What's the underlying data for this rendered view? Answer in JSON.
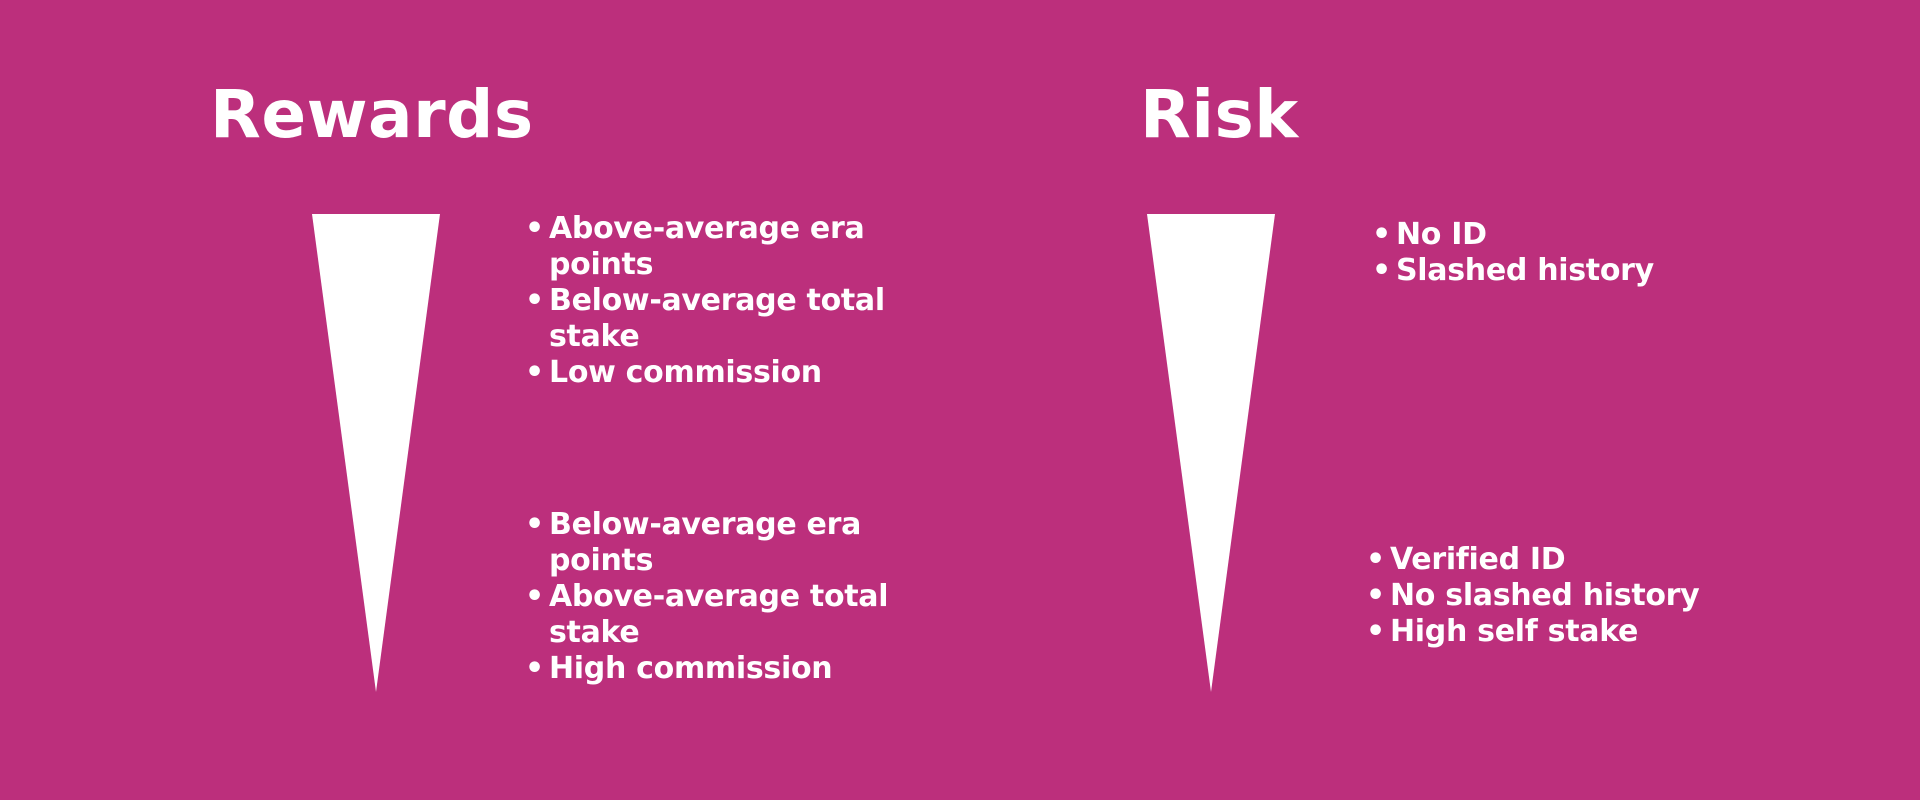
{
  "colors": {
    "background": "#BC2F7C",
    "foreground": "#FFFFFF"
  },
  "rewards": {
    "title": "Rewards",
    "top_items": [
      "Above-average era points",
      "Below-average total stake",
      "Low commission"
    ],
    "bottom_items": [
      "Below-average era points",
      "Above-average total stake",
      "High commission"
    ]
  },
  "risk": {
    "title": "Risk",
    "top_items": [
      "No ID",
      "Slashed history"
    ],
    "bottom_items": [
      "Verified ID",
      "No slashed history",
      "High self stake"
    ]
  }
}
